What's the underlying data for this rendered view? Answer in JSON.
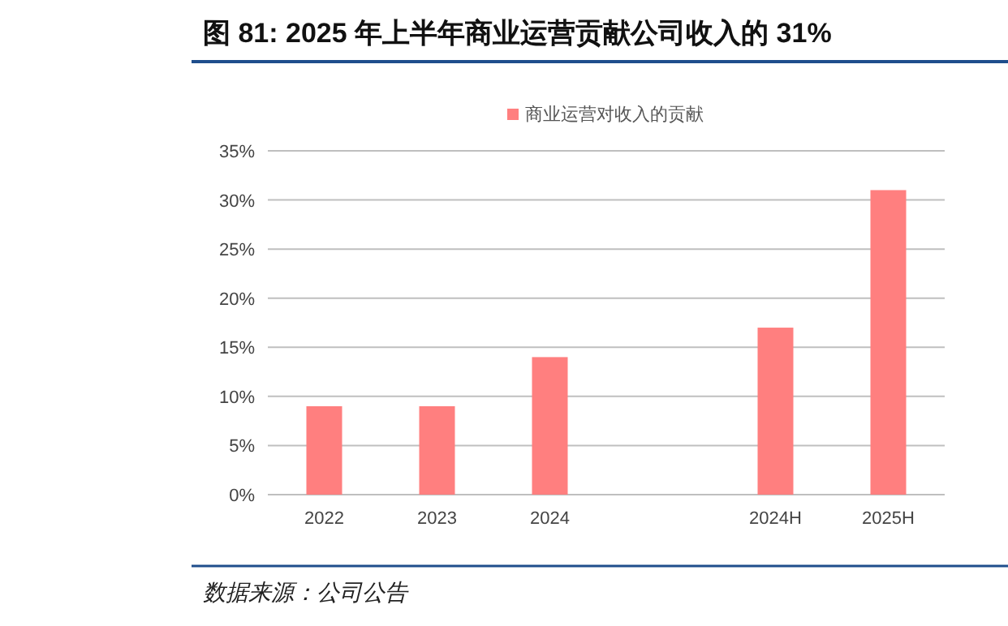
{
  "chart_data": {
    "type": "bar",
    "title": "图 81: 2025 年上半年商业运营贡献公司收入的 31%",
    "categories": [
      "2022",
      "2023",
      "2024",
      null,
      "2024H",
      "2025H"
    ],
    "series": [
      {
        "name": "商业运营对收入的贡献",
        "color": "#ff7f7f",
        "values": [
          9,
          9,
          14,
          null,
          17,
          31
        ]
      }
    ],
    "ylim": [
      0,
      35
    ],
    "yticks": [
      {
        "value": 0,
        "label": "0%"
      },
      {
        "value": 5,
        "label": "5%"
      },
      {
        "value": 10,
        "label": "10%"
      },
      {
        "value": 15,
        "label": "15%"
      },
      {
        "value": 20,
        "label": "20%"
      },
      {
        "value": 25,
        "label": "25%"
      },
      {
        "value": 30,
        "label": "30%"
      },
      {
        "value": 35,
        "label": "35%"
      }
    ],
    "grid": "y",
    "legend": "top",
    "annotations": [
      "数据来源：公司公告"
    ]
  }
}
